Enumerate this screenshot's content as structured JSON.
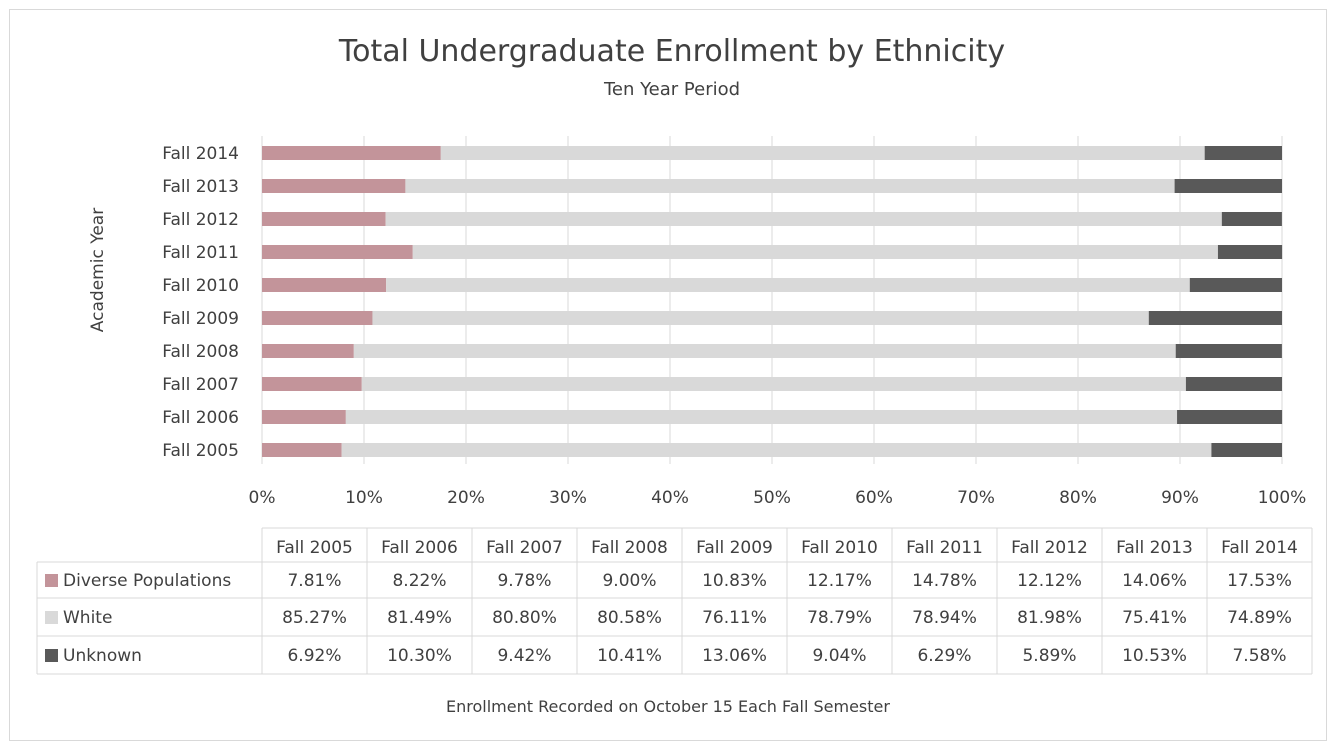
{
  "chart_data": {
    "type": "bar",
    "orientation": "horizontal",
    "stacked": "percent",
    "title": "Total Undergraduate Enrollment by Ethnicity",
    "subtitle": "Ten Year Period",
    "ylabel": "Academic Year",
    "footnote": "Enrollment Recorded on October 15 Each Fall Semester",
    "categories": [
      "Fall 2005",
      "Fall 2006",
      "Fall 2007",
      "Fall 2008",
      "Fall 2009",
      "Fall 2010",
      "Fall 2011",
      "Fall 2012",
      "Fall 2013",
      "Fall 2014"
    ],
    "x_ticks": [
      "0%",
      "10%",
      "20%",
      "30%",
      "40%",
      "50%",
      "60%",
      "70%",
      "80%",
      "90%",
      "100%"
    ],
    "xlim": [
      0,
      100
    ],
    "grid": "vertical",
    "legend": "data-table",
    "series": [
      {
        "name": "Diverse Populations",
        "color": "#c3949a",
        "values": [
          7.81,
          8.22,
          9.78,
          9.0,
          10.83,
          12.17,
          14.78,
          12.12,
          14.06,
          17.53
        ],
        "labels": [
          "7.81%",
          "8.22%",
          "9.78%",
          "9.00%",
          "10.83%",
          "12.17%",
          "14.78%",
          "12.12%",
          "14.06%",
          "17.53%"
        ]
      },
      {
        "name": "White",
        "color": "#d9d9d9",
        "values": [
          85.27,
          81.49,
          80.8,
          80.58,
          76.11,
          78.79,
          78.94,
          81.98,
          75.41,
          74.89
        ],
        "labels": [
          "85.27%",
          "81.49%",
          "80.80%",
          "80.58%",
          "76.11%",
          "78.79%",
          "78.94%",
          "81.98%",
          "75.41%",
          "74.89%"
        ]
      },
      {
        "name": "Unknown",
        "color": "#595959",
        "values": [
          6.92,
          10.3,
          9.42,
          10.41,
          13.06,
          9.04,
          6.29,
          5.89,
          10.53,
          7.58
        ],
        "labels": [
          "6.92%",
          "10.30%",
          "9.42%",
          "10.41%",
          "13.06%",
          "9.04%",
          "6.29%",
          "5.89%",
          "10.53%",
          "7.58%"
        ]
      }
    ]
  }
}
